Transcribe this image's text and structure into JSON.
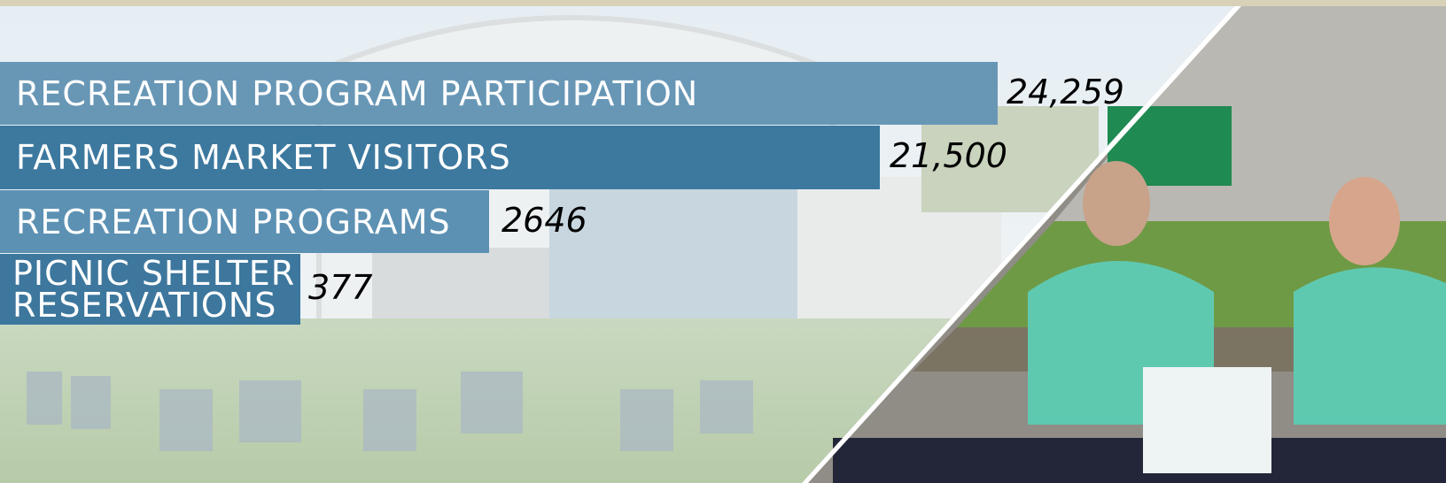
{
  "stats": [
    {
      "label": "RECREATION PROGRAM PARTICIPATION",
      "value": "24,259"
    },
    {
      "label": "FARMERS MARKET VISITORS",
      "value": "21,500"
    },
    {
      "label": "RECREATION PROGRAMS",
      "value": "2646"
    },
    {
      "label": "PICNIC SHELTER RESERVATIONS",
      "value": "377"
    }
  ]
}
